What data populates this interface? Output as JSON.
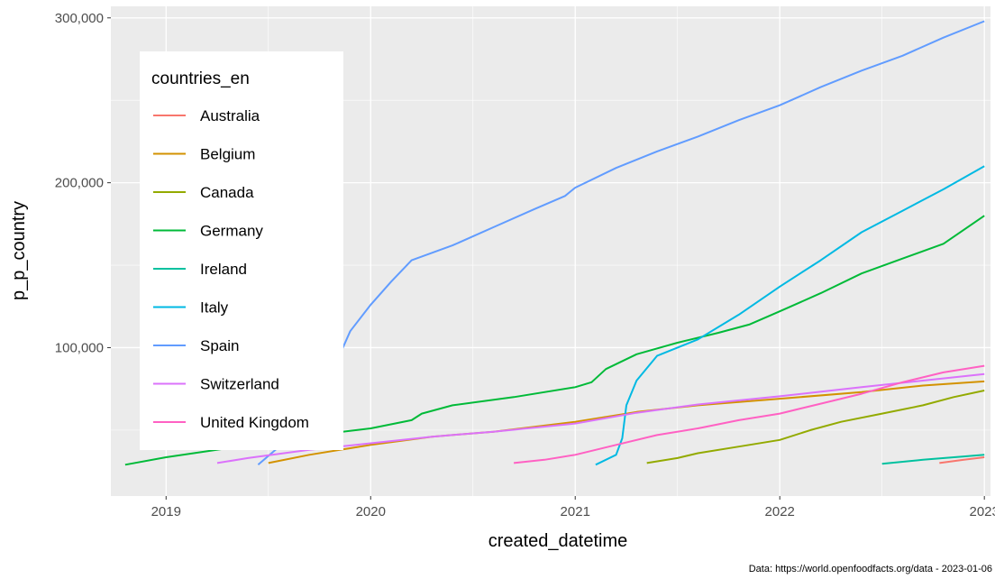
{
  "chart_data": {
    "type": "line",
    "title": "",
    "xlabel": "created_datetime",
    "ylabel": "p_p_country",
    "caption": "Data: https://world.openfoodfacts.org/data -  2023-01-06",
    "xlim": [
      2018.73,
      2023.03
    ],
    "ylim": [
      10000,
      307000
    ],
    "x_ticks": [
      2019,
      2020,
      2021,
      2022,
      2023
    ],
    "x_tick_labels": [
      "2019",
      "2020",
      "2021",
      "2022",
      "2023"
    ],
    "y_ticks": [
      100000,
      200000,
      300000
    ],
    "y_tick_labels": [
      "100,000",
      "200,000",
      "300,000"
    ],
    "grid": true,
    "legend": {
      "title": "countries_en",
      "position": "top-left",
      "entries": [
        "Australia",
        "Belgium",
        "Canada",
        "Germany",
        "Ireland",
        "Italy",
        "Spain",
        "Switzerland",
        "United Kingdom"
      ]
    },
    "series": [
      {
        "name": "Australia",
        "color": "#F8766D",
        "x": [
          2022.78,
          2022.9,
          2023.0
        ],
        "y": [
          30000,
          32000,
          33500
        ]
      },
      {
        "name": "Belgium",
        "color": "#D39200",
        "x": [
          2019.5,
          2019.7,
          2020.0,
          2020.3,
          2020.6,
          2021.0,
          2021.3,
          2021.6,
          2022.0,
          2022.4,
          2022.7,
          2023.0
        ],
        "y": [
          30000,
          35000,
          41000,
          46000,
          49000,
          55000,
          61000,
          65000,
          69000,
          73000,
          77000,
          79500
        ]
      },
      {
        "name": "Canada",
        "color": "#93AA00",
        "x": [
          2021.35,
          2021.5,
          2021.6,
          2021.8,
          2022.0,
          2022.15,
          2022.3,
          2022.5,
          2022.7,
          2022.85,
          2023.0
        ],
        "y": [
          30000,
          33000,
          36000,
          40000,
          44000,
          50000,
          55000,
          60000,
          65000,
          70000,
          74000
        ]
      },
      {
        "name": "Germany",
        "color": "#00BA38",
        "x": [
          2018.8,
          2019.0,
          2019.3,
          2019.6,
          2019.8,
          2020.0,
          2020.2,
          2020.25,
          2020.4,
          2020.7,
          2021.0,
          2021.08,
          2021.15,
          2021.3,
          2021.5,
          2021.7,
          2021.85,
          2022.0,
          2022.2,
          2022.4,
          2022.6,
          2022.8,
          2023.0
        ],
        "y": [
          29000,
          33500,
          39000,
          44000,
          48000,
          51000,
          56000,
          60000,
          65000,
          70000,
          76000,
          79000,
          87000,
          96000,
          103000,
          109000,
          114000,
          122000,
          133000,
          145000,
          154000,
          163000,
          180000
        ]
      },
      {
        "name": "Ireland",
        "color": "#00C19F",
        "x": [
          2022.5,
          2022.7,
          2022.9,
          2023.0
        ],
        "y": [
          29500,
          32000,
          34000,
          35000
        ]
      },
      {
        "name": "Italy",
        "color": "#00B9E3",
        "x": [
          2021.1,
          2021.2,
          2021.23,
          2021.25,
          2021.3,
          2021.4,
          2021.6,
          2021.8,
          2022.0,
          2022.2,
          2022.4,
          2022.6,
          2022.8,
          2023.0
        ],
        "y": [
          29000,
          35000,
          45000,
          65000,
          80000,
          95000,
          105000,
          120000,
          137000,
          153000,
          170000,
          183000,
          196000,
          210000
        ]
      },
      {
        "name": "Spain",
        "color": "#619CFF",
        "x": [
          2019.45,
          2019.6,
          2019.8,
          2019.9,
          2020.0,
          2020.1,
          2020.2,
          2020.4,
          2020.6,
          2020.8,
          2020.95,
          2021.0,
          2021.2,
          2021.4,
          2021.6,
          2021.8,
          2022.0,
          2022.2,
          2022.4,
          2022.6,
          2022.8,
          2023.0
        ],
        "y": [
          29000,
          45000,
          82000,
          110000,
          126000,
          140000,
          153000,
          162000,
          173000,
          184000,
          192000,
          197000,
          209000,
          219000,
          228000,
          238000,
          247000,
          258000,
          268000,
          277000,
          288000,
          298000
        ]
      },
      {
        "name": "Switzerland",
        "color": "#DB72FB",
        "x": [
          2019.25,
          2019.4,
          2019.7,
          2020.0,
          2020.3,
          2020.6,
          2021.0,
          2021.3,
          2021.6,
          2022.0,
          2022.4,
          2022.7,
          2023.0
        ],
        "y": [
          30000,
          33000,
          38000,
          42000,
          46000,
          49000,
          54000,
          60500,
          65500,
          70500,
          76000,
          80000,
          84000
        ]
      },
      {
        "name": "United Kingdom",
        "color": "#FF61C3",
        "x": [
          2020.7,
          2020.85,
          2021.0,
          2021.2,
          2021.4,
          2021.6,
          2021.8,
          2022.0,
          2022.2,
          2022.4,
          2022.6,
          2022.8,
          2023.0
        ],
        "y": [
          30000,
          32000,
          35000,
          41000,
          47000,
          51000,
          56000,
          60000,
          66000,
          72000,
          79000,
          85000,
          89000
        ]
      }
    ]
  }
}
